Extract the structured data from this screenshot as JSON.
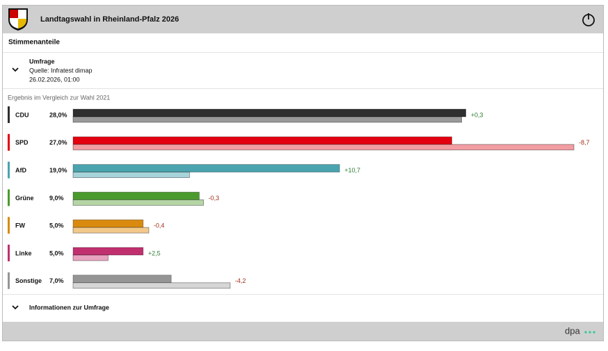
{
  "header": {
    "title": "Landtagswahl in Rheinland-Pfalz 2026",
    "section": "Stimmenanteile"
  },
  "poll": {
    "label": "Umfrage",
    "source": "Quelle: Infratest dimap",
    "date": "26.02.2026, 01:00"
  },
  "footer": {
    "info": "Informationen zur Umfrage",
    "brand": "dpa"
  },
  "chart_data": {
    "type": "bar",
    "subtitle": "Ergebnis im Vergleich zur Wahl 2021",
    "categories": [
      "CDU",
      "SPD",
      "AfD",
      "Grüne",
      "FW",
      "Linke",
      "Sonstige"
    ],
    "series": [
      {
        "values": [
          28.0,
          27.0,
          19.0,
          9.0,
          5.0,
          5.0,
          7.0
        ],
        "value_labels": [
          "28,0%",
          "27,0%",
          "19,0%",
          "9,0%",
          "5,0%",
          "5,0%",
          "7,0%"
        ],
        "colors": [
          "#2f2f2f",
          "#e3000f",
          "#4aa3ae",
          "#4a9a2e",
          "#d98a0e",
          "#c0306f",
          "#959595"
        ]
      },
      {
        "values": [
          27.7,
          35.7,
          8.3,
          9.3,
          5.4,
          2.5,
          11.2
        ],
        "colors": [
          "#9a9a9a",
          "#f29da2",
          "#a7d4da",
          "#b5d5a5",
          "#f2c98a",
          "#e8a3c1",
          "#d6d6d6"
        ]
      }
    ],
    "changes": {
      "values": [
        0.3,
        -8.7,
        10.7,
        -0.3,
        -0.4,
        2.5,
        -4.2
      ],
      "value_labels": [
        "+0,3",
        "-8,7",
        "+10,7",
        "-0,3",
        "-0,4",
        "+2,5",
        "-4,2"
      ]
    }
  }
}
